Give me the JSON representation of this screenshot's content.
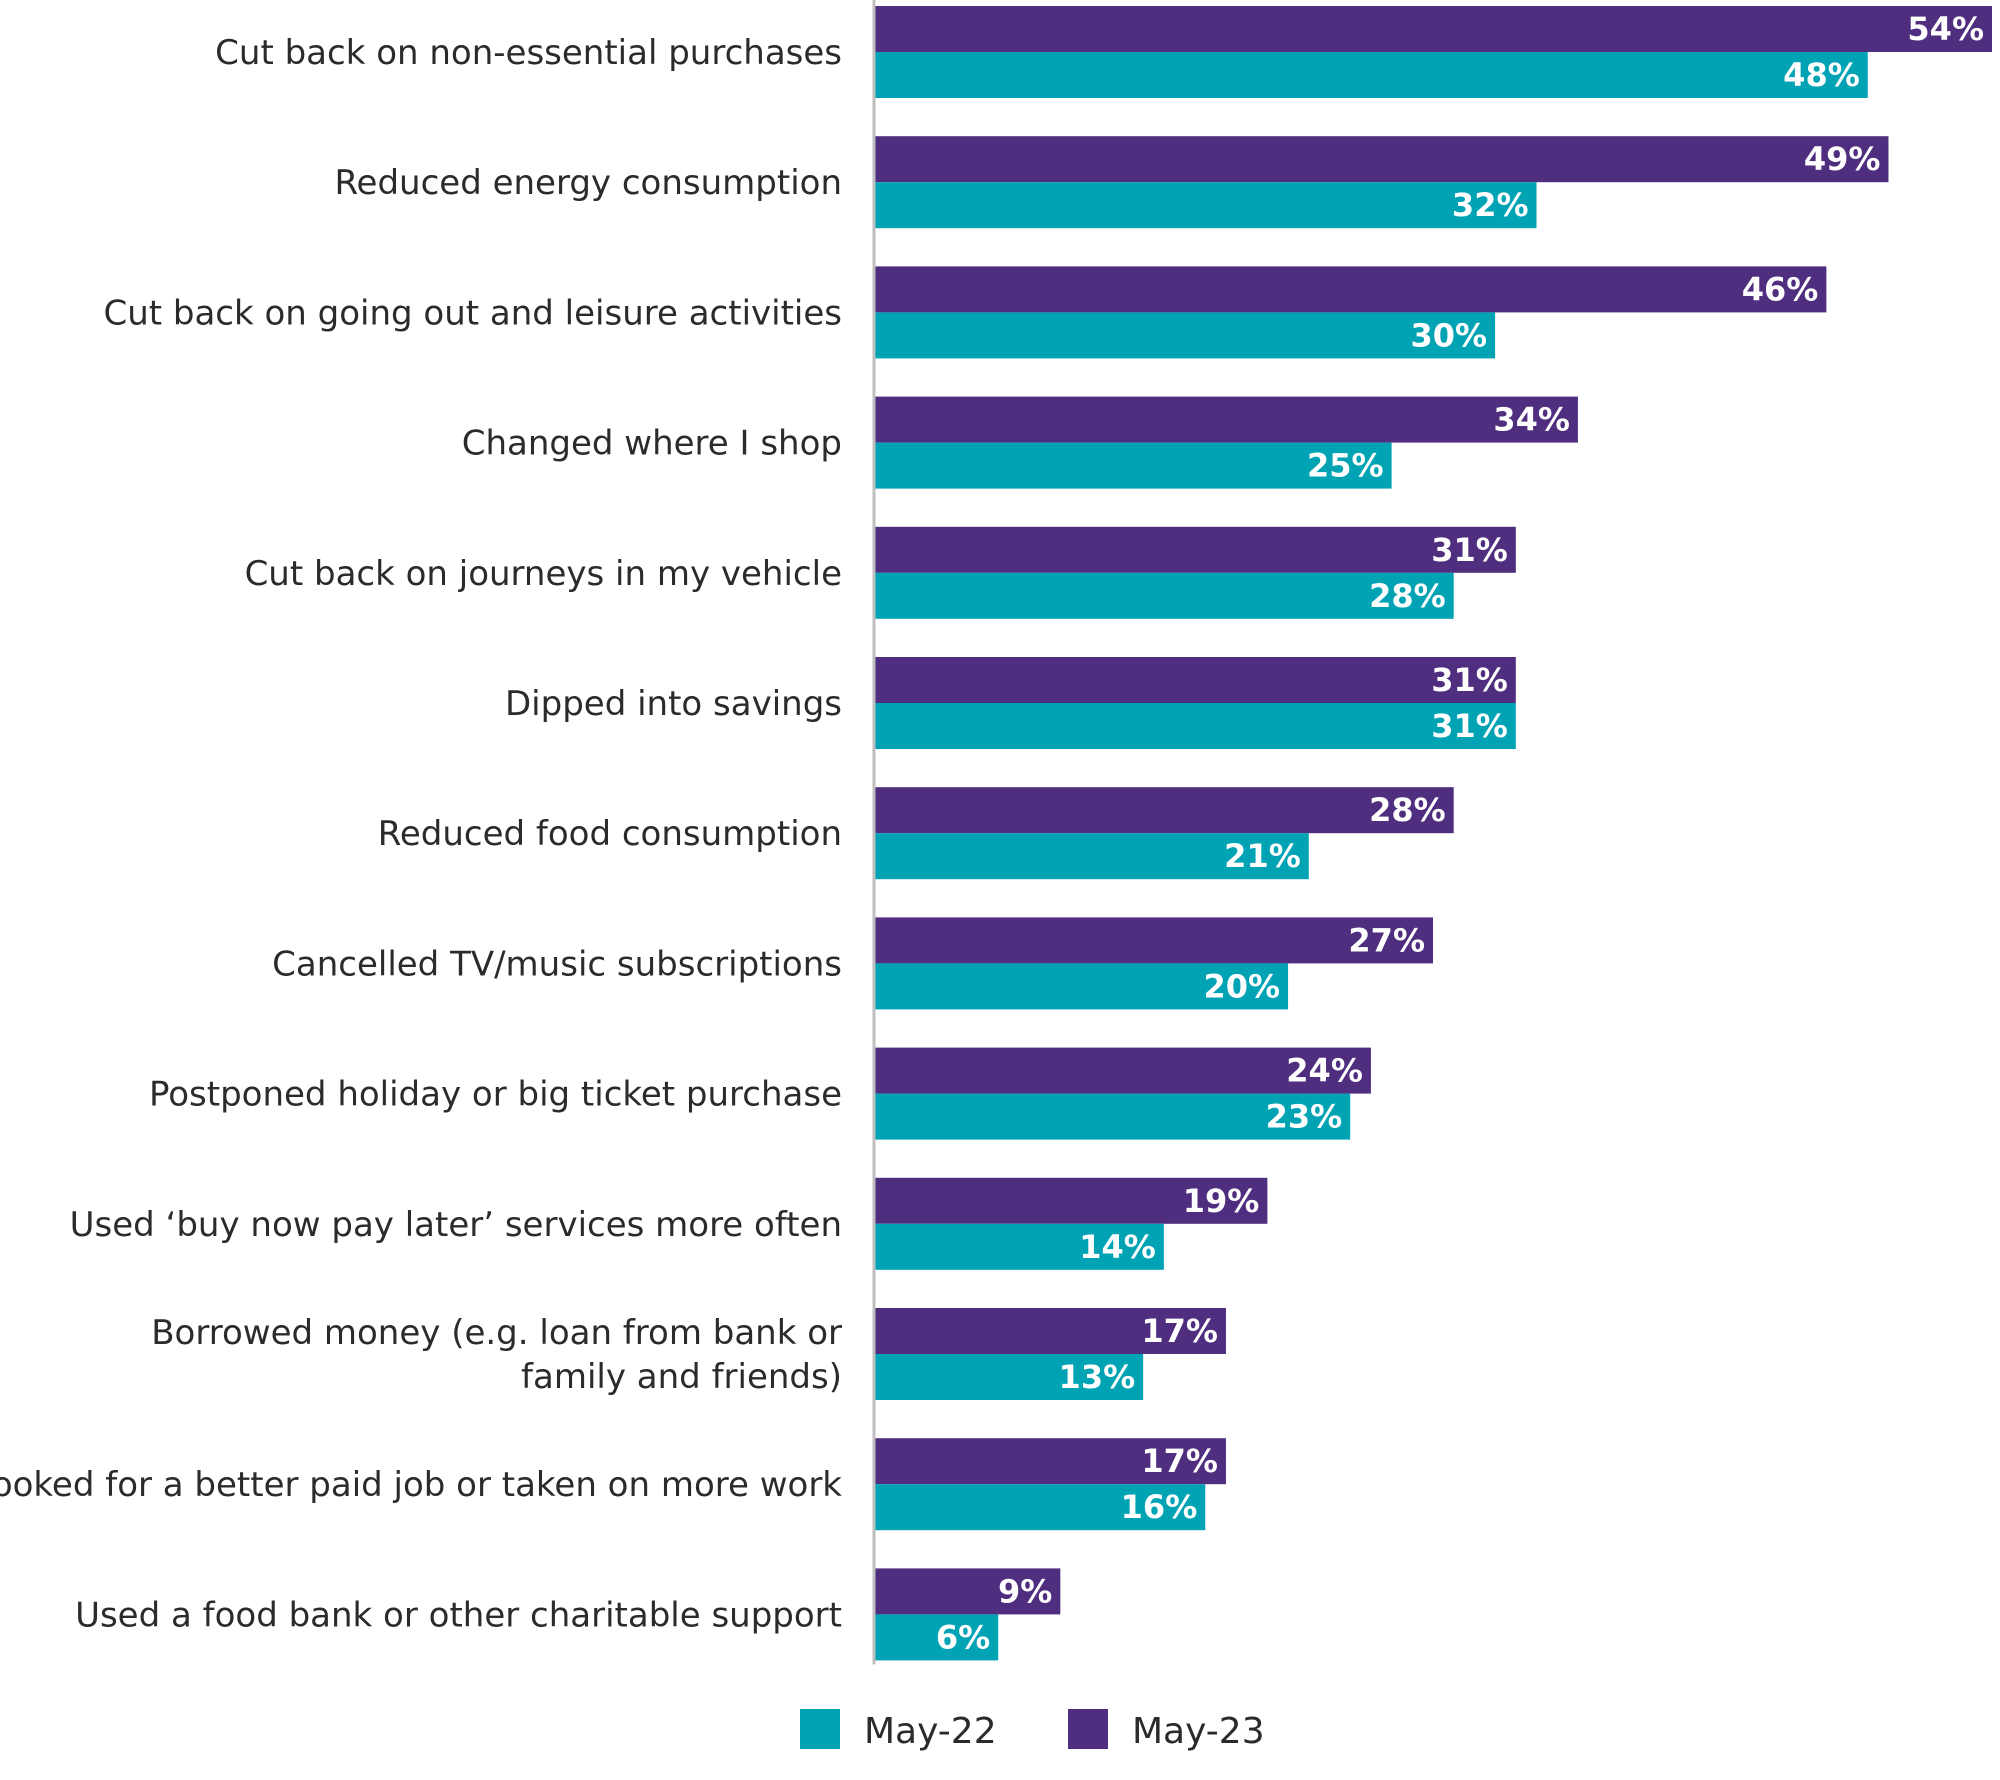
{
  "chart_data": {
    "type": "bar",
    "orientation": "horizontal",
    "categories": [
      [
        "Cut back on non-essential purchases"
      ],
      [
        "Reduced energy consumption"
      ],
      [
        "Cut back on going out and leisure activities"
      ],
      [
        "Changed where I shop"
      ],
      [
        "Cut back on journeys in my vehicle"
      ],
      [
        "Dipped into savings"
      ],
      [
        "Reduced food consumption"
      ],
      [
        "Cancelled TV/music subscriptions"
      ],
      [
        "Postponed holiday or big ticket purchase"
      ],
      [
        "Used ‘buy now pay later’ services more often"
      ],
      [
        "Borrowed money (e.g. loan from bank or",
        "family and friends)"
      ],
      [
        "Looked for a better paid job or taken on more work"
      ],
      [
        "Used a food bank or other charitable support"
      ]
    ],
    "series": [
      {
        "name": "May-23",
        "color": "#4f2d7f",
        "values": [
          54,
          49,
          46,
          34,
          31,
          31,
          28,
          27,
          24,
          19,
          17,
          17,
          9
        ],
        "labels": [
          "54%",
          "49%",
          "46%",
          "34%",
          "31%",
          "31%",
          "28%",
          "27%",
          "24%",
          "19%",
          "17%",
          "17%",
          "9%"
        ]
      },
      {
        "name": "May-22",
        "color": "#00a3b4",
        "values": [
          48,
          32,
          30,
          25,
          28,
          31,
          21,
          20,
          23,
          14,
          13,
          16,
          6
        ],
        "labels": [
          "48%",
          "32%",
          "30%",
          "25%",
          "28%",
          "31%",
          "21%",
          "20%",
          "23%",
          "14%",
          "13%",
          "16%",
          "6%"
        ]
      }
    ],
    "legend": {
      "position": "bottom",
      "items": [
        {
          "name": "May-22",
          "color": "#00a3b4"
        },
        {
          "name": "May-23",
          "color": "#4f2d7f"
        }
      ]
    },
    "xlim": [
      0,
      54
    ],
    "grid": false,
    "axis_color": "#bfbfbf"
  }
}
